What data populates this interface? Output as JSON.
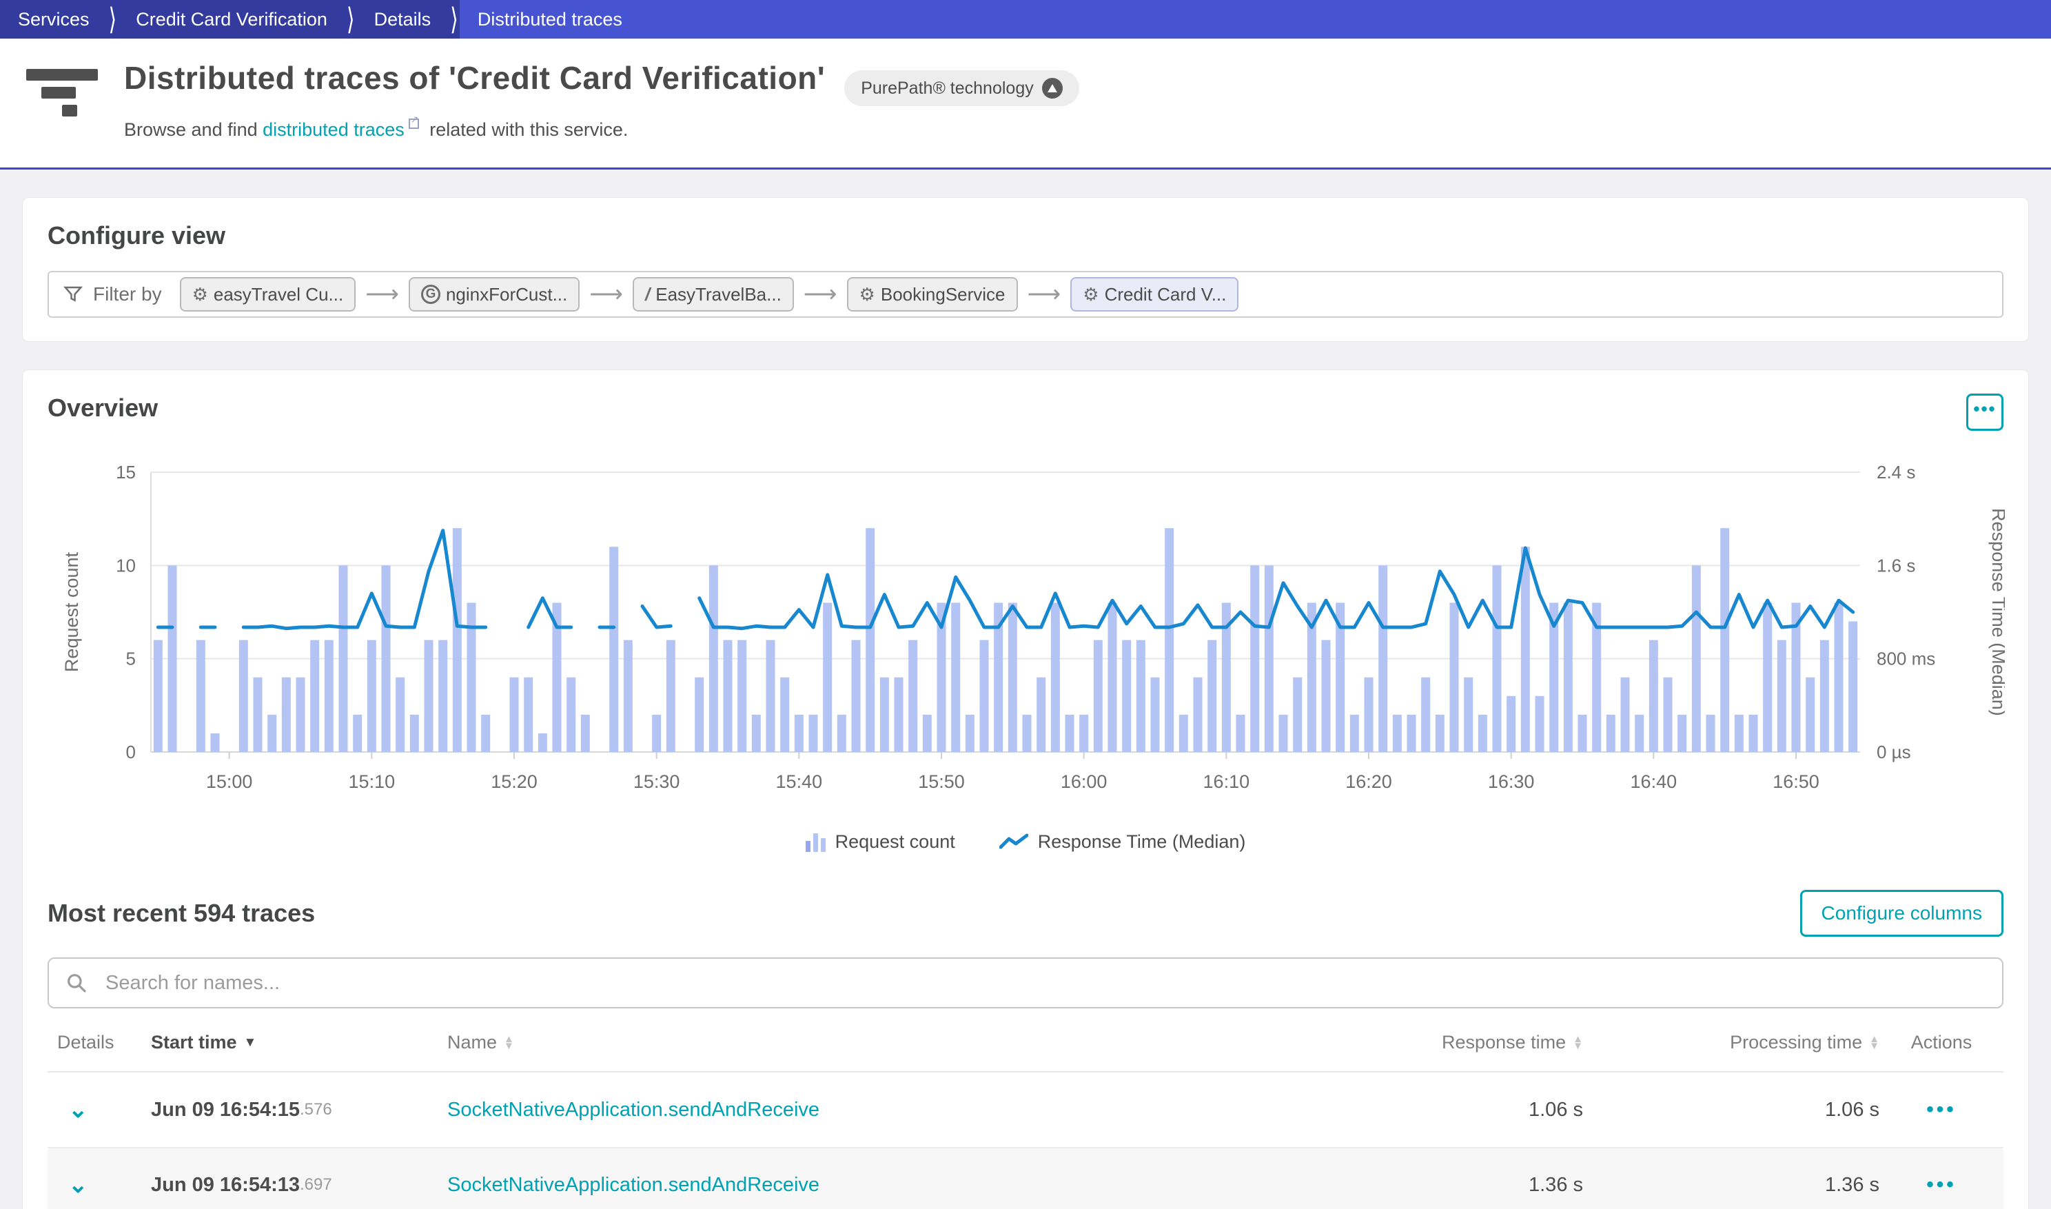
{
  "breadcrumb": {
    "items": [
      {
        "label": "Services"
      },
      {
        "label": "Credit Card Verification"
      },
      {
        "label": "Details"
      },
      {
        "label": "Distributed traces"
      }
    ]
  },
  "header": {
    "title": "Distributed traces of 'Credit Card Verification'",
    "badge": "PurePath® technology",
    "subtitle_prefix": "Browse and find",
    "subtitle_link": "distributed traces",
    "subtitle_suffix": "related with this service."
  },
  "configure_view": {
    "title": "Configure view",
    "filter_label": "Filter by",
    "chips": [
      {
        "icon": "gear-icon",
        "label": "easyTravel Cu..."
      },
      {
        "icon": "nginx-icon",
        "label": "nginxForCust..."
      },
      {
        "icon": "slash-icon",
        "label": "EasyTravelBa..."
      },
      {
        "icon": "service-icon",
        "label": "BookingService"
      },
      {
        "icon": "service-icon",
        "label": "Credit Card V..."
      }
    ]
  },
  "overview": {
    "title": "Overview",
    "menu_button": "•••"
  },
  "chart_data": {
    "type": "combo",
    "start_time": "14:55",
    "interval_minutes": 1,
    "x_tick_labels": [
      "15:00",
      "15:10",
      "15:20",
      "15:30",
      "15:40",
      "15:50",
      "16:00",
      "16:10",
      "16:20",
      "16:30",
      "16:40",
      "16:50"
    ],
    "left_axis": {
      "label": "Request count",
      "ticks": [
        0,
        5,
        10,
        15
      ],
      "max": 15
    },
    "right_axis": {
      "label": "Response Time (Median)",
      "ticks": [
        "0 µs",
        "800 ms",
        "1.6 s",
        "2.4 s"
      ],
      "max_seconds": 2.4
    },
    "legend": [
      {
        "icon": "bars-icon",
        "label": "Request count"
      },
      {
        "icon": "line-icon",
        "label": "Response Time (Median)"
      }
    ],
    "series": [
      {
        "name": "Request count",
        "type": "bar",
        "axis": "left",
        "values": [
          6,
          10,
          0,
          6,
          1,
          0,
          6,
          4,
          2,
          4,
          4,
          6,
          6,
          10,
          2,
          6,
          10,
          4,
          2,
          6,
          6,
          12,
          8,
          2,
          0,
          4,
          4,
          1,
          8,
          4,
          2,
          0,
          11,
          6,
          0,
          2,
          6,
          0,
          4,
          10,
          6,
          6,
          2,
          6,
          4,
          2,
          2,
          8,
          2,
          6,
          12,
          4,
          4,
          6,
          2,
          8,
          8,
          2,
          6,
          8,
          8,
          2,
          4,
          8,
          2,
          2,
          6,
          8,
          6,
          6,
          4,
          12,
          2,
          4,
          6,
          8,
          2,
          10,
          10,
          2,
          4,
          8,
          6,
          8,
          2,
          4,
          10,
          2,
          2,
          4,
          2,
          8,
          4,
          2,
          10,
          3,
          11,
          3,
          8,
          8,
          2,
          8,
          2,
          4,
          2,
          6,
          4,
          2,
          10,
          2,
          12,
          2,
          2,
          8,
          6,
          8,
          4,
          6,
          8,
          7
        ]
      },
      {
        "name": "Response Time (Median)",
        "type": "line",
        "axis": "right",
        "unit": "s",
        "values": [
          1.07,
          1.07,
          null,
          1.07,
          1.07,
          null,
          1.07,
          1.07,
          1.08,
          1.06,
          1.07,
          1.07,
          1.08,
          1.07,
          1.07,
          1.36,
          1.08,
          1.07,
          1.07,
          1.55,
          1.9,
          1.08,
          1.07,
          1.07,
          null,
          null,
          1.07,
          1.32,
          1.07,
          1.07,
          null,
          1.07,
          1.07,
          null,
          1.25,
          1.07,
          1.08,
          null,
          1.32,
          1.07,
          1.07,
          1.06,
          1.08,
          1.07,
          1.07,
          1.22,
          1.07,
          1.52,
          1.08,
          1.07,
          1.07,
          1.35,
          1.07,
          1.08,
          1.28,
          1.07,
          1.5,
          1.3,
          1.07,
          1.07,
          1.25,
          1.07,
          1.07,
          1.36,
          1.07,
          1.08,
          1.07,
          1.3,
          1.1,
          1.25,
          1.07,
          1.07,
          1.1,
          1.26,
          1.07,
          1.07,
          1.2,
          1.08,
          1.07,
          1.45,
          1.25,
          1.07,
          1.3,
          1.07,
          1.07,
          1.28,
          1.07,
          1.07,
          1.07,
          1.1,
          1.55,
          1.35,
          1.07,
          1.3,
          1.07,
          1.07,
          1.75,
          1.35,
          1.08,
          1.3,
          1.28,
          1.07,
          1.07,
          1.07,
          1.07,
          1.07,
          1.07,
          1.08,
          1.2,
          1.07,
          1.07,
          1.35,
          1.07,
          1.3,
          1.07,
          1.08,
          1.25,
          1.07,
          1.3,
          1.2
        ]
      }
    ]
  },
  "traces": {
    "title": "Most recent 594 traces",
    "configure_columns_button": "Configure columns",
    "search_placeholder": "Search for names...",
    "action_dots": "•••",
    "table": {
      "headers": [
        {
          "label": "Details"
        },
        {
          "label": "Start time",
          "sorted": "desc"
        },
        {
          "label": "Name",
          "sortable": true
        },
        {
          "label": "Response time",
          "sortable": true
        },
        {
          "label": "Processing time",
          "sortable": true
        },
        {
          "label": "Actions"
        }
      ],
      "rows": [
        {
          "start_main": "Jun 09 16:54:15",
          "start_ms": ".576",
          "name": "SocketNativeApplication.sendAndReceive",
          "response_time": "1.06 s",
          "processing_time": "1.06 s"
        },
        {
          "start_main": "Jun 09 16:54:13",
          "start_ms": ".697",
          "name": "SocketNativeApplication.sendAndReceive",
          "response_time": "1.36 s",
          "processing_time": "1.36 s"
        }
      ]
    }
  },
  "colors": {
    "accent_teal": "#00a1b2",
    "bar_fill": "#b3c3f3",
    "line_stroke": "#1787d0",
    "topbar_bg": "#4754d1",
    "breadcrumb_dark": "#343b9e"
  }
}
